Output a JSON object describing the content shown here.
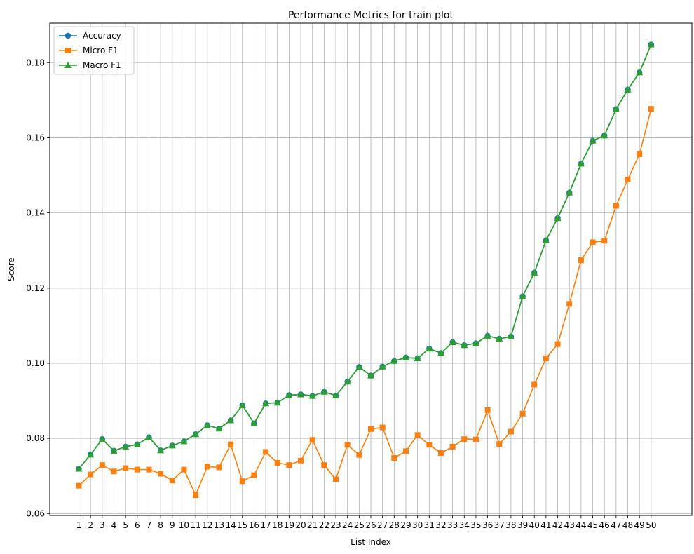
{
  "chart_data": {
    "type": "line",
    "title": "Performance Metrics for train plot",
    "xlabel": "List Index",
    "ylabel": "Score",
    "x": [
      1,
      2,
      3,
      4,
      5,
      6,
      7,
      8,
      9,
      10,
      11,
      12,
      13,
      14,
      15,
      16,
      17,
      18,
      19,
      20,
      21,
      22,
      23,
      24,
      25,
      26,
      27,
      28,
      29,
      30,
      31,
      32,
      33,
      34,
      35,
      36,
      37,
      38,
      39,
      40,
      41,
      42,
      43,
      44,
      45,
      46,
      47,
      48,
      49,
      50
    ],
    "ylim": [
      0.0595,
      0.1905
    ],
    "yticks": [
      0.06,
      0.08,
      0.1,
      0.12,
      0.14,
      0.16,
      0.18
    ],
    "ytick_labels": [
      "0.06",
      "0.08",
      "0.10",
      "0.12",
      "0.14",
      "0.16",
      "0.18"
    ],
    "grid": true,
    "legend_position": "top-left",
    "series": [
      {
        "name": "Accuracy",
        "color": "#1f77b4",
        "marker": "circle",
        "values": [
          0.0719,
          0.0757,
          0.0798,
          0.0767,
          0.0778,
          0.0784,
          0.0803,
          0.0768,
          0.0781,
          0.0792,
          0.0811,
          0.0835,
          0.0826,
          0.0848,
          0.0888,
          0.084,
          0.0893,
          0.0895,
          0.0915,
          0.0917,
          0.0913,
          0.0924,
          0.0914,
          0.0951,
          0.099,
          0.0967,
          0.0991,
          0.1006,
          0.1015,
          0.1013,
          0.1039,
          0.1027,
          0.1056,
          0.1048,
          0.1053,
          0.1073,
          0.1065,
          0.1071,
          0.1178,
          0.1241,
          0.1327,
          0.1386,
          0.1454,
          0.1531,
          0.1592,
          0.1606,
          0.1676,
          0.1728,
          0.1774,
          0.1848
        ]
      },
      {
        "name": "Micro F1",
        "color": "#ff7f0e",
        "marker": "square",
        "values": [
          0.0674,
          0.0704,
          0.0729,
          0.0712,
          0.0721,
          0.0717,
          0.0717,
          0.0706,
          0.0688,
          0.0717,
          0.0649,
          0.0725,
          0.0723,
          0.0784,
          0.0686,
          0.0702,
          0.0764,
          0.0735,
          0.0729,
          0.0741,
          0.0796,
          0.0729,
          0.0691,
          0.0783,
          0.0756,
          0.0825,
          0.0829,
          0.0748,
          0.0766,
          0.0809,
          0.0783,
          0.0761,
          0.0778,
          0.0798,
          0.0797,
          0.0875,
          0.0785,
          0.0818,
          0.0866,
          0.0943,
          0.1013,
          0.1051,
          0.1158,
          0.1274,
          0.1322,
          0.1326,
          0.1419,
          0.1489,
          0.1556,
          0.1677
        ]
      },
      {
        "name": "Macro F1",
        "color": "#2ca02c",
        "marker": "triangle",
        "values": [
          0.0719,
          0.0757,
          0.0798,
          0.0767,
          0.0778,
          0.0784,
          0.0803,
          0.0768,
          0.0781,
          0.0792,
          0.0811,
          0.0835,
          0.0826,
          0.0848,
          0.0888,
          0.084,
          0.0893,
          0.0895,
          0.0915,
          0.0917,
          0.0913,
          0.0924,
          0.0914,
          0.0951,
          0.099,
          0.0967,
          0.0991,
          0.1006,
          0.1015,
          0.1013,
          0.1039,
          0.1027,
          0.1056,
          0.1048,
          0.1053,
          0.1073,
          0.1065,
          0.1071,
          0.1178,
          0.1241,
          0.1327,
          0.1386,
          0.1454,
          0.1531,
          0.1592,
          0.1606,
          0.1676,
          0.1728,
          0.1774,
          0.1848
        ]
      }
    ]
  }
}
